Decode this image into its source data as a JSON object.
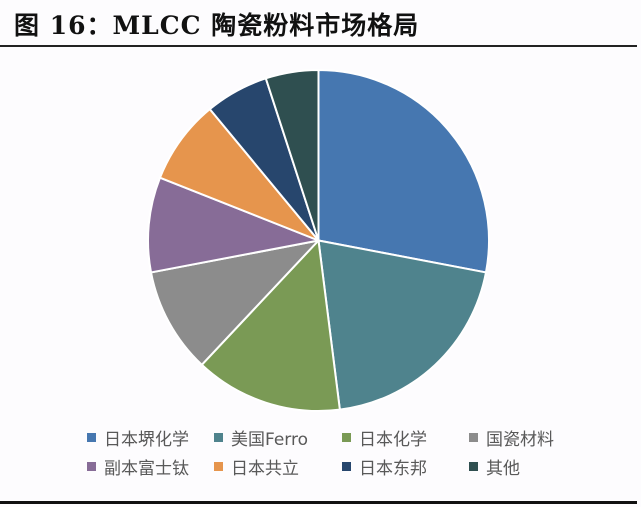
{
  "title": "图 16：MLCC 陶瓷粉料市场格局",
  "chart_data": {
    "type": "pie",
    "title": "图 16：MLCC 陶瓷粉料市场格局",
    "start_angle_deg": 0,
    "direction": "clockwise",
    "unit": "%",
    "categories": [
      "日本堺化学",
      "美国Ferro",
      "日本化学",
      "国瓷材料",
      "副本富士钛",
      "日本共立",
      "日本东邦",
      "其他"
    ],
    "values": [
      28,
      20,
      14,
      10,
      9,
      8,
      6,
      5
    ],
    "colors": [
      "#4677b0",
      "#4f838d",
      "#7a9a55",
      "#8c8c8c",
      "#876c97",
      "#e6954d",
      "#27466d",
      "#2f4f50"
    ],
    "legend_position": "bottom",
    "data_labels": false
  },
  "legend": {
    "items": [
      {
        "label": "日本堺化学",
        "color": "#4677b0"
      },
      {
        "label": "美国Ferro",
        "color": "#4f838d"
      },
      {
        "label": "日本化学",
        "color": "#7a9a55"
      },
      {
        "label": "国瓷材料",
        "color": "#8c8c8c"
      },
      {
        "label": "副本富士钛",
        "color": "#876c97"
      },
      {
        "label": "日本共立",
        "color": "#e6954d"
      },
      {
        "label": "日本东邦",
        "color": "#27466d"
      },
      {
        "label": "其他",
        "color": "#2f4f50"
      }
    ]
  }
}
